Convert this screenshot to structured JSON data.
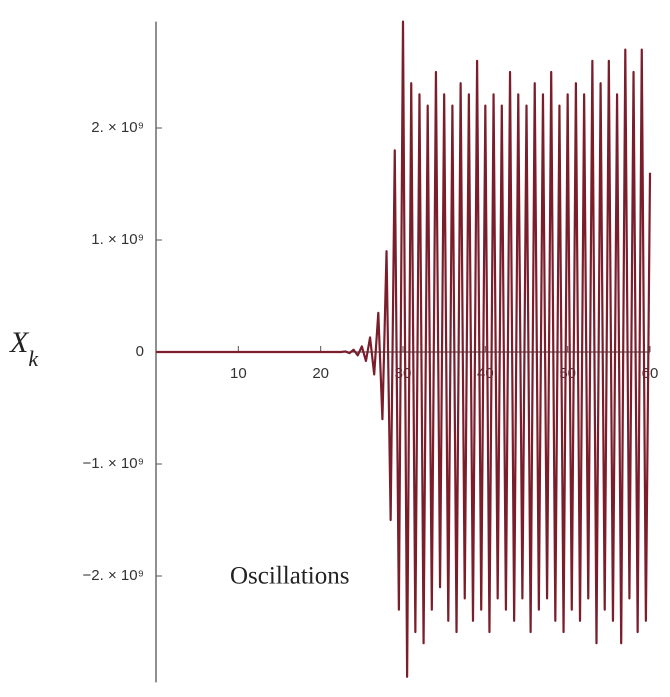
{
  "chart_data": {
    "type": "line",
    "y_label": {
      "main": "X",
      "subscript": "k"
    },
    "annotation": "Oscillations",
    "color": "#7b1e2c",
    "x": [
      0,
      22,
      22.5,
      23,
      23.5,
      24,
      24.5,
      25,
      25.5,
      26,
      26.5,
      27,
      27.5,
      28,
      28.5,
      29,
      29.5,
      30,
      30.5,
      31,
      31.5,
      32,
      32.5,
      33,
      33.5,
      34,
      34.5,
      35,
      35.5,
      36,
      36.5,
      37,
      37.5,
      38,
      38.5,
      39,
      39.5,
      40,
      40.5,
      41,
      41.5,
      42,
      42.5,
      43,
      43.5,
      44,
      44.5,
      45,
      45.5,
      46,
      46.5,
      47,
      47.5,
      48,
      48.5,
      49,
      49.5,
      50,
      50.5,
      51,
      51.5,
      52,
      52.5,
      53,
      53.5,
      54,
      54.5,
      55,
      55.5,
      56,
      56.5,
      57,
      57.5,
      58,
      58.5,
      59,
      59.5,
      60
    ],
    "values": [
      0,
      0,
      0,
      5000000.0,
      -10000000.0,
      20000000.0,
      -30000000.0,
      50000000.0,
      -80000000.0,
      130000000.0,
      -200000000.0,
      350000000.0,
      -600000000.0,
      900000000.0,
      -1500000000.0,
      1800000000.0,
      -2300000000.0,
      2950000000.0,
      -2900000000.0,
      2400000000.0,
      -2500000000.0,
      2300000000.0,
      -2600000000.0,
      2200000000.0,
      -2300000000.0,
      2500000000.0,
      -2100000000.0,
      2300000000.0,
      -2400000000.0,
      2200000000.0,
      -2500000000.0,
      2400000000.0,
      -2200000000.0,
      2300000000.0,
      -2400000000.0,
      2600000000.0,
      -2300000000.0,
      2200000000.0,
      -2500000000.0,
      2300000000.0,
      -2200000000.0,
      2200000000.0,
      -2300000000.0,
      2500000000.0,
      -2400000000.0,
      2300000000.0,
      -2200000000.0,
      2200000000.0,
      -2500000000.0,
      2400000000.0,
      -2300000000.0,
      2300000000.0,
      -2200000000.0,
      2500000000.0,
      -2400000000.0,
      2200000000.0,
      -2500000000.0,
      2300000000.0,
      -2300000000.0,
      2400000000.0,
      -2400000000.0,
      2300000000.0,
      -2200000000.0,
      2600000000.0,
      -2600000000.0,
      2400000000.0,
      -2300000000.0,
      2600000000.0,
      -2400000000.0,
      2300000000.0,
      -2600000000.0,
      2700000000.0,
      -2200000000.0,
      2500000000.0,
      -2500000000.0,
      2700000000.0,
      -2400000000.0,
      1600000000.0
    ],
    "xlim": [
      0,
      60
    ],
    "xticks": [
      10,
      20,
      30,
      40,
      50,
      60
    ],
    "ylim": [
      -2950000000.0,
      2950000000.0
    ],
    "yticks": [
      {
        "value": -2000000000.0,
        "label": "−2. × 10⁹"
      },
      {
        "value": -1000000000.0,
        "label": "−1. × 10⁹"
      },
      0,
      {
        "value": 1000000000.0,
        "label": "1. × 10⁹"
      },
      {
        "value": 2000000000.0,
        "label": "2. × 10⁹"
      }
    ]
  }
}
